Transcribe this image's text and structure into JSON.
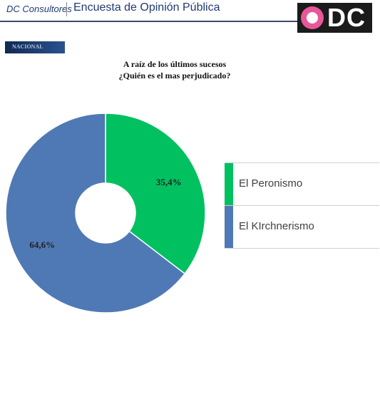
{
  "header": {
    "brand": "DC Consultores",
    "title": "Encuesta de Opinión Pública",
    "logo_text": "DC"
  },
  "section_tag": "NACIONAL",
  "colors": {
    "peronismo": "#00c060",
    "kirchnerismo": "#4f79b5"
  },
  "chart_data": {
    "type": "pie",
    "donut": true,
    "title": "A raíz de los últimos sucesos ¿Quién es el mas perjudicado?",
    "title_lines": [
      "A raíz de los últimos sucesos",
      "¿Quién es el mas perjudicado?"
    ],
    "legend_position": "right",
    "series": [
      {
        "name": "El Peronismo",
        "value": 35.4,
        "label": "35,4%",
        "color": "#00c060"
      },
      {
        "name": "El KIrchnerismo",
        "value": 64.6,
        "label": "64,6%",
        "color": "#4f79b5"
      }
    ]
  }
}
